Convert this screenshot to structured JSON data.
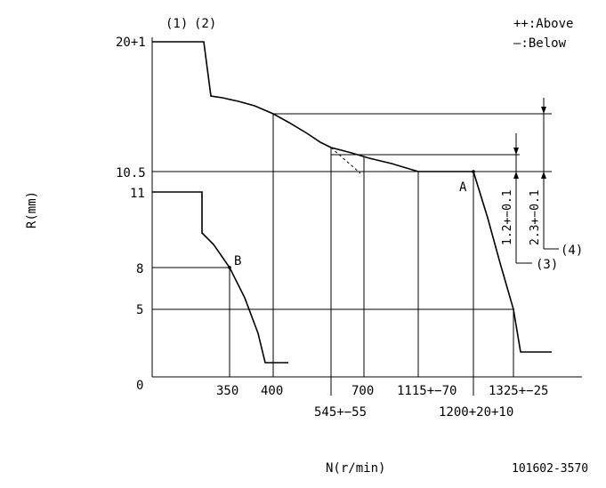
{
  "notation": {
    "above": "++:Above",
    "below": "—:Below"
  },
  "axes": {
    "ylabel": "R(mm)",
    "xlabel": "N(r/min)"
  },
  "callouts": {
    "c1": "(1)",
    "c2": "(2)",
    "c3": "(3)",
    "c4": "(4)",
    "pointA": "A",
    "pointB": "B"
  },
  "y_ticks": {
    "t20": "20+1",
    "t105": "10.5",
    "t11": "11",
    "t8": "8",
    "t5": "5",
    "t0": "0"
  },
  "x_ticks": {
    "t350": "350",
    "t400": "400",
    "t545": "545+−55",
    "t700": "700",
    "t1115": "1115+−70",
    "t1200": "1200+20+10",
    "t1325": "1325+−25"
  },
  "dimensions": {
    "d1": "1.2+−0.1",
    "d2": "2.3+−0.1"
  },
  "drawing_number": "101602-3570",
  "colors": {
    "line": "#000000",
    "background": "#ffffff"
  }
}
